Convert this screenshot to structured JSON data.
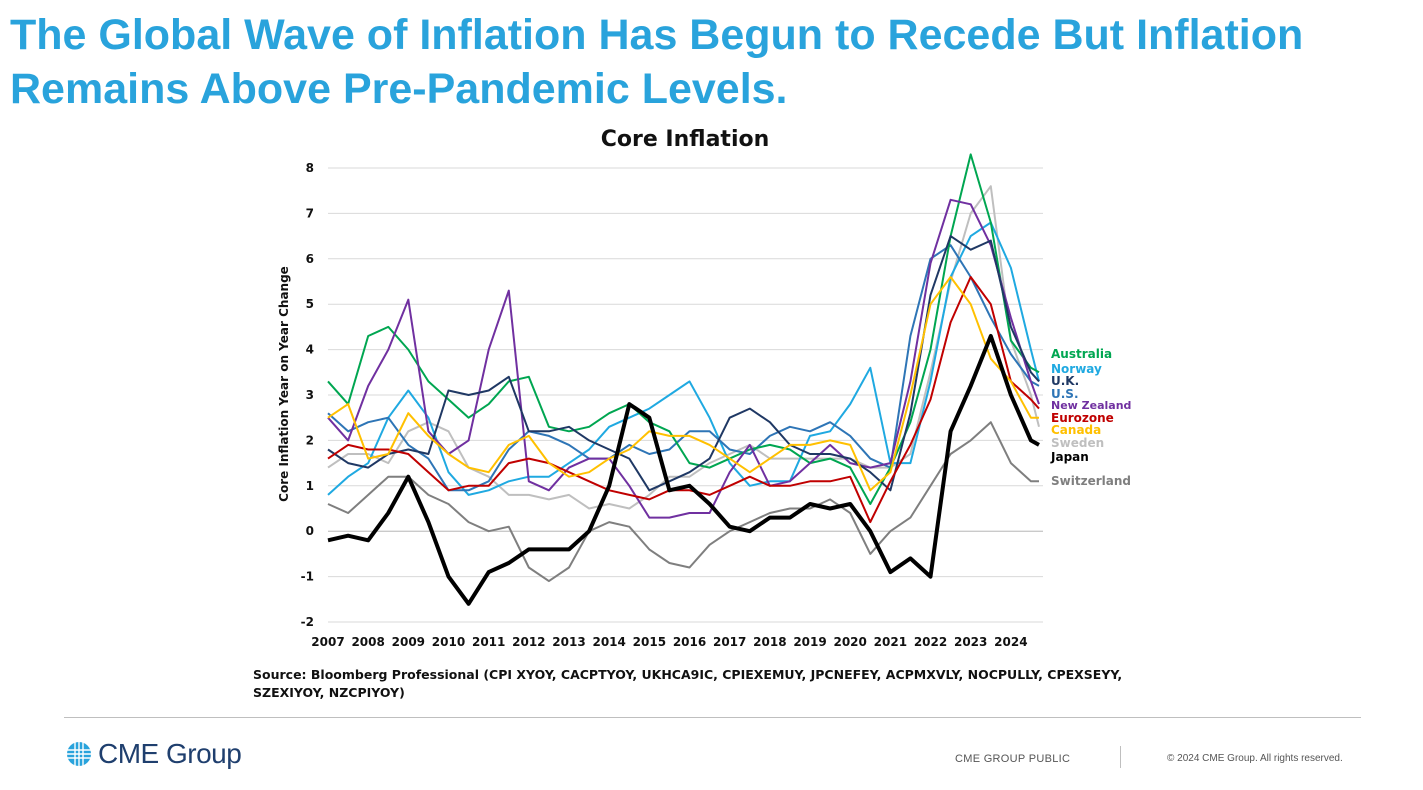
{
  "headline": "The Global Wave of Inflation Has Begun to Recede But Inflation Remains Above Pre-Pandemic Levels.",
  "source_note": "Source: Bloomberg Professional (CPI XYOY, CACPTYOY, UKHCA9IC, CPIEXEMUY, JPCNEFEY, ACPMXVLY, NOCPULLY, CPEXSEYY, SZEXIYOY, NZCPIYOY)",
  "footer": {
    "logo_text": "CME Group",
    "classification": "CME GROUP PUBLIC",
    "copyright": "© 2024 CME Group. All rights reserved."
  },
  "chart_data": {
    "type": "line",
    "title": "Core Inflation",
    "ylabel": "Core Inflation Year on Year Change",
    "xlabel": "",
    "xlim": [
      2007,
      2024.8
    ],
    "ylim": [
      -2,
      8
    ],
    "yticks": [
      -2,
      -1,
      0,
      1,
      2,
      3,
      4,
      5,
      6,
      7,
      8
    ],
    "xticks": [
      2007,
      2008,
      2009,
      2010,
      2011,
      2012,
      2013,
      2014,
      2015,
      2016,
      2017,
      2018,
      2019,
      2020,
      2021,
      2022,
      2023,
      2024
    ],
    "grid": "horizontal",
    "legend_position": "right",
    "series": [
      {
        "name": "Switzerland",
        "color": "#7f7f7f",
        "width": 2,
        "x": [
          2007,
          2007.5,
          2008,
          2008.5,
          2009,
          2009.5,
          2010,
          2010.5,
          2011,
          2011.5,
          2012,
          2012.5,
          2013,
          2013.5,
          2014,
          2014.5,
          2015,
          2015.5,
          2016,
          2016.5,
          2017,
          2017.5,
          2018,
          2018.5,
          2019,
          2019.5,
          2020,
          2020.5,
          2021,
          2021.5,
          2022,
          2022.5,
          2023,
          2023.5,
          2024,
          2024.5,
          2024.7
        ],
        "y": [
          0.6,
          0.4,
          0.8,
          1.2,
          1.2,
          0.8,
          0.6,
          0.2,
          0,
          0.1,
          -0.8,
          -1.1,
          -0.8,
          0,
          0.2,
          0.1,
          -0.4,
          -0.7,
          -0.8,
          -0.3,
          0,
          0.2,
          0.4,
          0.5,
          0.5,
          0.7,
          0.4,
          -0.5,
          0,
          0.3,
          1,
          1.7,
          2,
          2.4,
          1.5,
          1.1,
          1.1
        ]
      },
      {
        "name": "Sweden",
        "color": "#bfbfbf",
        "width": 2,
        "x": [
          2007,
          2007.5,
          2008,
          2008.5,
          2009,
          2009.5,
          2010,
          2010.5,
          2011,
          2011.5,
          2012,
          2012.5,
          2013,
          2013.5,
          2014,
          2014.5,
          2015,
          2015.5,
          2016,
          2016.5,
          2017,
          2017.5,
          2018,
          2018.5,
          2019,
          2019.5,
          2020,
          2020.5,
          2021,
          2021.5,
          2022,
          2022.5,
          2023,
          2023.5,
          2024,
          2024.5,
          2024.7
        ],
        "y": [
          1.4,
          1.7,
          1.7,
          1.5,
          2.2,
          2.4,
          2.2,
          1.4,
          1.2,
          0.8,
          0.8,
          0.7,
          0.8,
          0.5,
          0.6,
          0.5,
          0.8,
          1.2,
          1.2,
          1.5,
          1.7,
          1.9,
          1.6,
          1.6,
          1.6,
          1.6,
          1.6,
          1.4,
          1.4,
          1.7,
          3.5,
          5.5,
          7,
          7.6,
          4.2,
          3,
          2.3
        ]
      },
      {
        "name": "Norway",
        "color": "#1fa9e1",
        "width": 2,
        "x": [
          2007,
          2007.5,
          2008,
          2008.5,
          2009,
          2009.5,
          2010,
          2010.5,
          2011,
          2011.5,
          2012,
          2012.5,
          2013,
          2013.5,
          2014,
          2014.5,
          2015,
          2015.5,
          2016,
          2016.5,
          2017,
          2017.5,
          2018,
          2018.5,
          2019,
          2019.5,
          2020,
          2020.5,
          2021,
          2021.5,
          2022,
          2022.5,
          2023,
          2023.5,
          2024,
          2024.5,
          2024.7
        ],
        "y": [
          0.8,
          1.2,
          1.5,
          2.5,
          3.1,
          2.5,
          1.3,
          0.8,
          0.9,
          1.1,
          1.2,
          1.2,
          1.5,
          1.8,
          2.3,
          2.5,
          2.7,
          3.0,
          3.3,
          2.5,
          1.5,
          1,
          1.1,
          1.1,
          2.1,
          2.2,
          2.8,
          3.6,
          1.5,
          1.5,
          3.3,
          5.6,
          6.5,
          6.8,
          5.8,
          4,
          3.3
        ]
      },
      {
        "name": "U.S.",
        "color": "#2e75b6",
        "width": 2,
        "x": [
          2007,
          2007.5,
          2008,
          2008.5,
          2009,
          2009.5,
          2010,
          2010.5,
          2011,
          2011.5,
          2012,
          2012.5,
          2013,
          2013.5,
          2014,
          2014.5,
          2015,
          2015.5,
          2016,
          2016.5,
          2017,
          2017.5,
          2018,
          2018.5,
          2019,
          2019.5,
          2020,
          2020.5,
          2021,
          2021.5,
          2022,
          2022.5,
          2023,
          2023.5,
          2024,
          2024.5,
          2024.7
        ],
        "y": [
          2.6,
          2.2,
          2.4,
          2.5,
          1.9,
          1.6,
          0.9,
          0.9,
          1.1,
          1.8,
          2.2,
          2.1,
          1.9,
          1.6,
          1.6,
          1.9,
          1.7,
          1.8,
          2.2,
          2.2,
          1.8,
          1.7,
          2.1,
          2.3,
          2.2,
          2.4,
          2.1,
          1.6,
          1.4,
          4.3,
          6.0,
          6.3,
          5.6,
          4.7,
          3.9,
          3.3,
          3.2
        ]
      },
      {
        "name": "Australia",
        "color": "#00a651",
        "width": 2,
        "x": [
          2007,
          2007.5,
          2008,
          2008.5,
          2009,
          2009.5,
          2010,
          2010.5,
          2011,
          2011.5,
          2012,
          2012.5,
          2013,
          2013.5,
          2014,
          2014.5,
          2015,
          2015.5,
          2016,
          2016.5,
          2017,
          2017.5,
          2018,
          2018.5,
          2019,
          2019.5,
          2020,
          2020.5,
          2021,
          2021.5,
          2022,
          2022.5,
          2023,
          2023.5,
          2024,
          2024.5,
          2024.7
        ],
        "y": [
          3.3,
          2.8,
          4.3,
          4.5,
          4.0,
          3.3,
          2.9,
          2.5,
          2.8,
          3.3,
          3.4,
          2.3,
          2.2,
          2.3,
          2.6,
          2.8,
          2.4,
          2.2,
          1.5,
          1.4,
          1.6,
          1.8,
          1.9,
          1.8,
          1.5,
          1.6,
          1.4,
          0.6,
          1.4,
          2.4,
          4.0,
          6.5,
          8.3,
          6.8,
          4.2,
          3.6,
          3.5
        ]
      },
      {
        "name": "New Zealand",
        "color": "#7030a0",
        "width": 2,
        "x": [
          2007,
          2007.5,
          2008,
          2008.5,
          2009,
          2009.5,
          2010,
          2010.5,
          2011,
          2011.5,
          2012,
          2012.5,
          2013,
          2013.5,
          2014,
          2014.5,
          2015,
          2015.5,
          2016,
          2016.5,
          2017,
          2017.5,
          2018,
          2018.5,
          2019,
          2019.5,
          2020,
          2020.5,
          2021,
          2021.5,
          2022,
          2022.5,
          2023,
          2023.5,
          2024,
          2024.5,
          2024.7
        ],
        "y": [
          2.5,
          2.0,
          3.2,
          4.0,
          5.1,
          2.2,
          1.7,
          2.0,
          4.0,
          5.3,
          1.1,
          0.9,
          1.4,
          1.6,
          1.6,
          1.0,
          0.3,
          0.3,
          0.4,
          0.4,
          1.3,
          1.9,
          1.0,
          1.1,
          1.5,
          1.9,
          1.5,
          1.4,
          1.5,
          3.3,
          5.9,
          7.3,
          7.2,
          6.3,
          4.7,
          3.3,
          2.8
        ]
      },
      {
        "name": "U.K.",
        "color": "#1f3864",
        "width": 2,
        "x": [
          2007,
          2007.5,
          2008,
          2008.5,
          2009,
          2009.5,
          2010,
          2010.5,
          2011,
          2011.5,
          2012,
          2012.5,
          2013,
          2013.5,
          2014,
          2014.5,
          2015,
          2015.5,
          2016,
          2016.5,
          2017,
          2017.5,
          2018,
          2018.5,
          2019,
          2019.5,
          2020,
          2020.5,
          2021,
          2021.5,
          2022,
          2022.5,
          2023,
          2023.5,
          2024,
          2024.5,
          2024.7
        ],
        "y": [
          1.8,
          1.5,
          1.4,
          1.7,
          1.8,
          1.7,
          3.1,
          3.0,
          3.1,
          3.4,
          2.2,
          2.2,
          2.3,
          2.0,
          1.8,
          1.6,
          0.9,
          1.1,
          1.3,
          1.6,
          2.5,
          2.7,
          2.4,
          1.9,
          1.7,
          1.7,
          1.6,
          1.3,
          0.9,
          2.6,
          5.2,
          6.5,
          6.2,
          6.4,
          4.5,
          3.5,
          3.3
        ]
      },
      {
        "name": "Eurozone",
        "color": "#c00000",
        "width": 2,
        "x": [
          2007,
          2007.5,
          2008,
          2008.5,
          2009,
          2009.5,
          2010,
          2010.5,
          2011,
          2011.5,
          2012,
          2012.5,
          2013,
          2013.5,
          2014,
          2014.5,
          2015,
          2015.5,
          2016,
          2016.5,
          2017,
          2017.5,
          2018,
          2018.5,
          2019,
          2019.5,
          2020,
          2020.5,
          2021,
          2021.5,
          2022,
          2022.5,
          2023,
          2023.5,
          2024,
          2024.5,
          2024.7
        ],
        "y": [
          1.6,
          1.9,
          1.8,
          1.8,
          1.7,
          1.3,
          0.9,
          1.0,
          1.0,
          1.5,
          1.6,
          1.5,
          1.3,
          1.1,
          0.9,
          0.8,
          0.7,
          0.9,
          0.9,
          0.8,
          1.0,
          1.2,
          1.0,
          1.0,
          1.1,
          1.1,
          1.2,
          0.2,
          1.1,
          1.9,
          2.9,
          4.6,
          5.6,
          5.0,
          3.3,
          2.9,
          2.7
        ]
      },
      {
        "name": "Canada",
        "color": "#ffc000",
        "width": 2,
        "x": [
          2007,
          2007.5,
          2008,
          2008.5,
          2009,
          2009.5,
          2010,
          2010.5,
          2011,
          2011.5,
          2012,
          2012.5,
          2013,
          2013.5,
          2014,
          2014.5,
          2015,
          2015.5,
          2016,
          2016.5,
          2017,
          2017.5,
          2018,
          2018.5,
          2019,
          2019.5,
          2020,
          2020.5,
          2021,
          2021.5,
          2022,
          2022.5,
          2023,
          2023.5,
          2024,
          2024.5,
          2024.7
        ],
        "y": [
          2.5,
          2.8,
          1.6,
          1.7,
          2.6,
          2.1,
          1.7,
          1.4,
          1.3,
          1.9,
          2.1,
          1.5,
          1.2,
          1.3,
          1.6,
          1.8,
          2.2,
          2.1,
          2.1,
          1.9,
          1.6,
          1.3,
          1.6,
          1.9,
          1.9,
          2.0,
          1.9,
          0.9,
          1.3,
          3.0,
          5.0,
          5.6,
          5.0,
          3.8,
          3.3,
          2.5,
          2.5
        ]
      },
      {
        "name": "Japan",
        "color": "#000000",
        "width": 4,
        "x": [
          2007,
          2007.5,
          2008,
          2008.5,
          2009,
          2009.5,
          2010,
          2010.5,
          2011,
          2011.5,
          2012,
          2012.5,
          2013,
          2013.5,
          2014,
          2014.5,
          2015,
          2015.5,
          2016,
          2016.5,
          2017,
          2017.5,
          2018,
          2018.5,
          2019,
          2019.5,
          2020,
          2020.5,
          2021,
          2021.5,
          2022,
          2022.5,
          2023,
          2023.5,
          2024,
          2024.5,
          2024.7
        ],
        "y": [
          -0.2,
          -0.1,
          -0.2,
          0.4,
          1.2,
          0.2,
          -1.0,
          -1.6,
          -0.9,
          -0.7,
          -0.4,
          -0.4,
          -0.4,
          0.0,
          1.0,
          2.8,
          2.5,
          0.9,
          1.0,
          0.6,
          0.1,
          0.0,
          0.3,
          0.3,
          0.6,
          0.5,
          0.6,
          0.0,
          -0.9,
          -0.6,
          -1.0,
          2.2,
          3.2,
          4.3,
          3.0,
          2.0,
          1.9
        ]
      }
    ]
  }
}
